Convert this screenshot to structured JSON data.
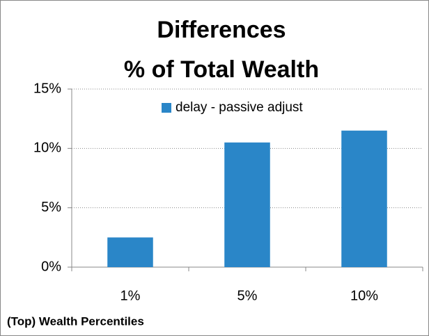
{
  "chart_data": {
    "type": "bar",
    "title": [
      "Differences",
      "% of Total Wealth"
    ],
    "x_label": "(Top) Wealth Percentiles",
    "categories": [
      "1%",
      "5%",
      "10%"
    ],
    "series": [
      {
        "name": "delay - passive adjust",
        "color": "#2a86c8",
        "values": [
          2.5,
          10.5,
          11.5
        ]
      }
    ],
    "ylim": [
      0,
      15
    ],
    "yticks": [
      {
        "value": 0,
        "label": "0%"
      },
      {
        "value": 5,
        "label": "5%"
      },
      {
        "value": 10,
        "label": "10%"
      },
      {
        "value": 15,
        "label": "15%"
      }
    ],
    "grid": true,
    "legend": "top"
  }
}
